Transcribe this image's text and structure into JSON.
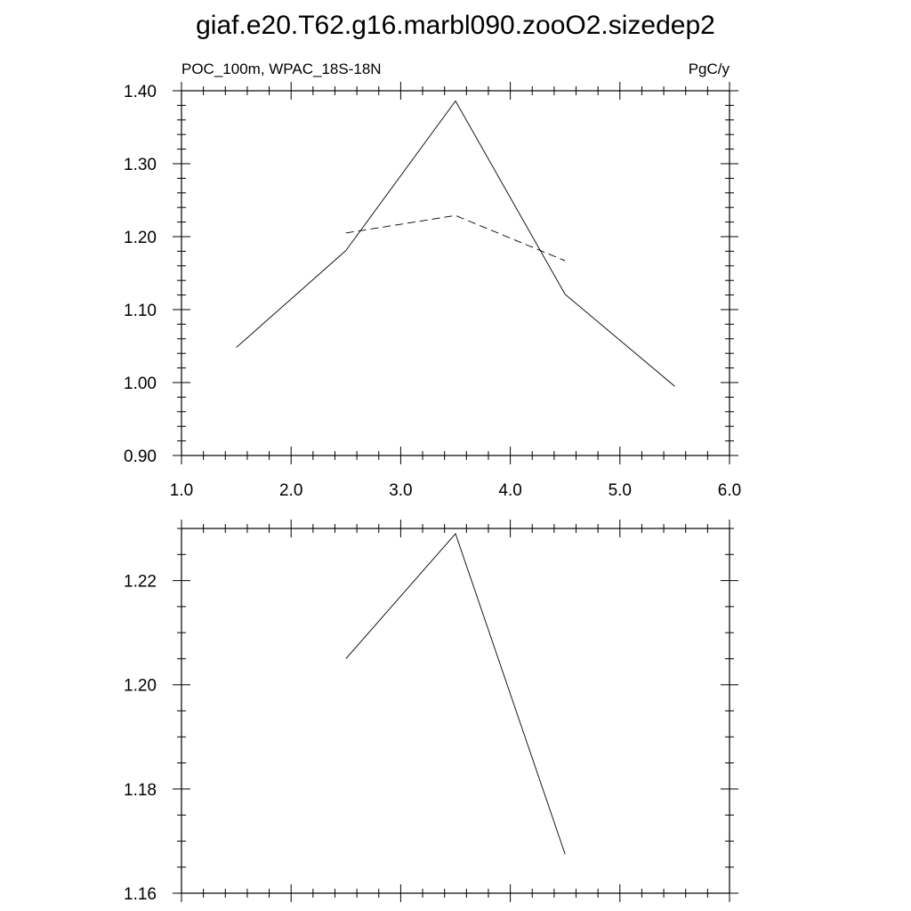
{
  "figure": {
    "title": "giaf.e20.T62.g16.marbl090.zooO2.sizedep2"
  },
  "chart_data": [
    {
      "type": "line",
      "subtitle_left": "POC_100m, WPAC_18S-18N",
      "subtitle_right": "PgC/y",
      "xlim": [
        1.0,
        6.0
      ],
      "ylim": [
        0.9,
        1.4
      ],
      "xticks": [
        1.0,
        2.0,
        3.0,
        4.0,
        5.0,
        6.0
      ],
      "xtick_labels": [
        "1.0",
        "2.0",
        "3.0",
        "4.0",
        "5.0",
        "6.0"
      ],
      "yticks": [
        0.9,
        1.0,
        1.1,
        1.2,
        1.3,
        1.4
      ],
      "ytick_labels": [
        "0.90",
        "1.00",
        "1.10",
        "1.20",
        "1.30",
        "1.40"
      ],
      "grid": false,
      "series": [
        {
          "style": "solid",
          "x": [
            1.5,
            2.5,
            3.5,
            4.5,
            5.5
          ],
          "y": [
            1.048,
            1.181,
            1.386,
            1.121,
            0.995
          ]
        },
        {
          "style": "dashed",
          "x": [
            2.5,
            3.5,
            4.5
          ],
          "y": [
            1.205,
            1.229,
            1.167
          ]
        }
      ]
    },
    {
      "type": "line",
      "xlim": [
        1.0,
        6.0
      ],
      "ylim": [
        1.16,
        1.23
      ],
      "xticks": [
        1.0,
        2.0,
        3.0,
        4.0,
        5.0,
        6.0
      ],
      "yticks": [
        1.16,
        1.18,
        1.2,
        1.22
      ],
      "ytick_labels": [
        "1.16",
        "1.18",
        "1.20",
        "1.22"
      ],
      "grid": false,
      "series": [
        {
          "style": "solid",
          "x": [
            2.5,
            3.5,
            4.5
          ],
          "y": [
            1.205,
            1.229,
            1.1675
          ]
        }
      ]
    }
  ]
}
